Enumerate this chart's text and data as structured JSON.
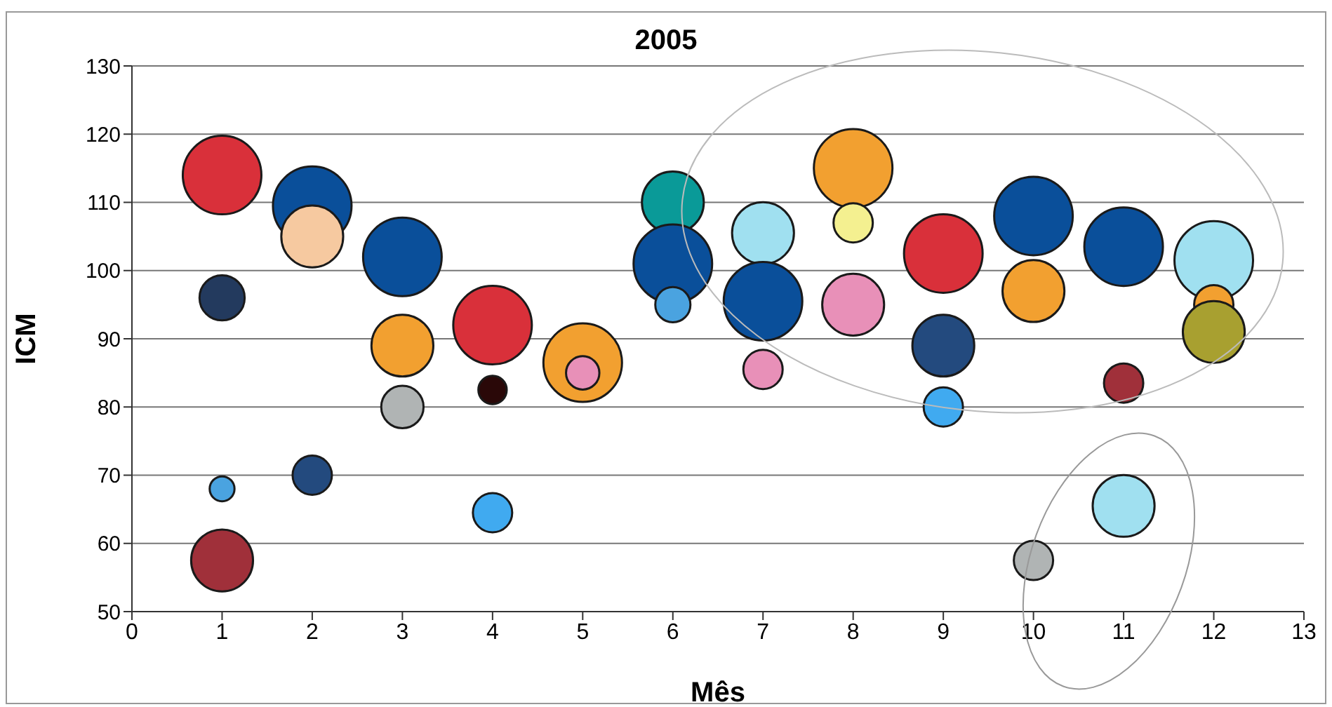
{
  "chart_data": {
    "type": "bubble",
    "title": "2005",
    "xlabel": "Mês",
    "ylabel": "ICM",
    "xlim": [
      0,
      13
    ],
    "xticks": [
      0,
      1,
      2,
      3,
      4,
      5,
      6,
      7,
      8,
      9,
      10,
      11,
      12,
      13
    ],
    "ylim": [
      50,
      130
    ],
    "yticks": [
      50,
      60,
      70,
      80,
      90,
      100,
      110,
      120,
      130
    ],
    "grid": "y",
    "legend": false,
    "series": [
      {
        "x": [
          1,
          1,
          1,
          1,
          2,
          2,
          2,
          3,
          3,
          3,
          4,
          4,
          4,
          5,
          5,
          6,
          6,
          6,
          7,
          7,
          7,
          8,
          8,
          8,
          9,
          9,
          9,
          10,
          10,
          10,
          11,
          11,
          11,
          12,
          12,
          12
        ],
        "values": [
          114,
          96,
          68,
          57.5,
          109.5,
          105,
          70,
          102,
          89,
          80,
          92,
          82.5,
          64.5,
          86.5,
          85,
          110,
          101,
          95,
          105.5,
          95.5,
          85.5,
          115,
          107,
          95,
          102.5,
          89,
          80,
          108,
          97,
          57.5,
          103.5,
          83.5,
          65.5,
          101.5,
          95,
          91
        ],
        "sizes": [
          1,
          0.33,
          0.1,
          0.62,
          1,
          0.62,
          0.25,
          1,
          0.62,
          0.29,
          1,
          0.13,
          0.25,
          1,
          0.18,
          0.62,
          1,
          0.2,
          0.62,
          1,
          0.25,
          1,
          0.25,
          0.62,
          1,
          0.62,
          0.25,
          1,
          0.62,
          0.25,
          1,
          0.25,
          0.62,
          1,
          0.25,
          0.62
        ],
        "colors": [
          "#d9303a",
          "#233a5e",
          "#4aa3e0",
          "#a0303a",
          "#0a4f9a",
          "#f6c9a0",
          "#234a7e",
          "#0a4f9a",
          "#f2a030",
          "#b0b4b4",
          "#d9303a",
          "#2a0808",
          "#40aaf0",
          "#f2a030",
          "#e890b8",
          "#0a9a98",
          "#0a4f9a",
          "#4aa3e0",
          "#a0e0f0",
          "#0a4f9a",
          "#e890b8",
          "#f2a030",
          "#f4f090",
          "#e890b8",
          "#d9303a",
          "#234a7e",
          "#40aaf0",
          "#0a4f9a",
          "#f2a030",
          "#b0b4b4",
          "#0a4f9a",
          "#a0303a",
          "#a0e0f0",
          "#a0e0f0",
          "#f2a030",
          "#a8a030"
        ]
      }
    ]
  }
}
